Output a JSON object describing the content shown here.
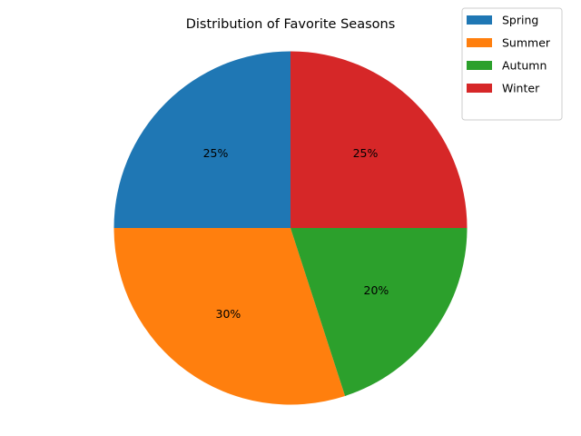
{
  "chart_data": {
    "type": "pie",
    "title": "Distribution of Favorite Seasons",
    "categories": [
      "Spring",
      "Summer",
      "Autumn",
      "Winter"
    ],
    "values": [
      25,
      30,
      20,
      25
    ],
    "labels": [
      "25%",
      "30%",
      "20%",
      "25%"
    ],
    "colors": [
      "#1f77b4",
      "#ff7f0e",
      "#2ca02c",
      "#d62728"
    ],
    "start_angle_deg": 90,
    "direction": "counterclockwise",
    "legend": {
      "placement": "top-right",
      "entries": [
        "Spring",
        "Summer",
        "Autumn",
        "Winter"
      ]
    }
  }
}
